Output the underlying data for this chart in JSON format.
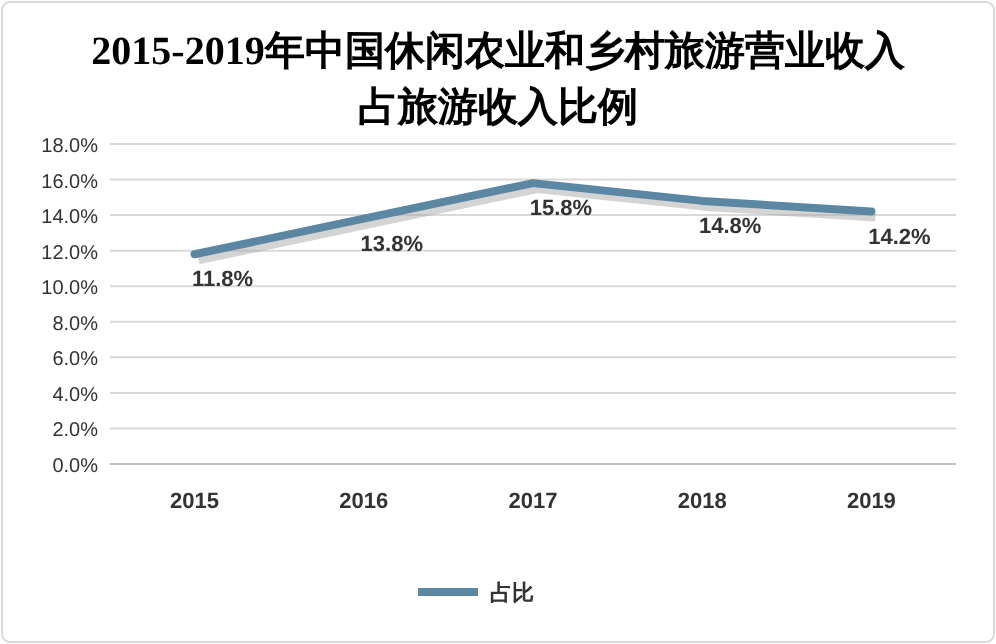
{
  "chart_data": {
    "type": "line",
    "title": "2015-2019年中国休闲农业和乡村旅游营业收入占旅游收入比例",
    "categories": [
      "2015",
      "2016",
      "2017",
      "2018",
      "2019"
    ],
    "series": [
      {
        "name": "占比",
        "color": "#5b87a3",
        "values": [
          11.8,
          13.8,
          15.8,
          14.8,
          14.2
        ],
        "value_labels": [
          "11.8%",
          "13.8%",
          "15.8%",
          "14.8%",
          "14.2%"
        ]
      }
    ],
    "ylim": [
      0,
      18
    ],
    "yticks": [
      {
        "value": 0,
        "label": "0.0%"
      },
      {
        "value": 2,
        "label": "2.0%"
      },
      {
        "value": 4,
        "label": "4.0%"
      },
      {
        "value": 6,
        "label": "6.0%"
      },
      {
        "value": 8,
        "label": "8.0%"
      },
      {
        "value": 10,
        "label": "10.0%"
      },
      {
        "value": 12,
        "label": "12.0%"
      },
      {
        "value": 14,
        "label": "14.0%"
      },
      {
        "value": 16,
        "label": "16.0%"
      },
      {
        "value": 18,
        "label": "18.0%"
      }
    ],
    "grid": "y",
    "legend": "bottom",
    "marker": "none",
    "line_style": "solid"
  }
}
